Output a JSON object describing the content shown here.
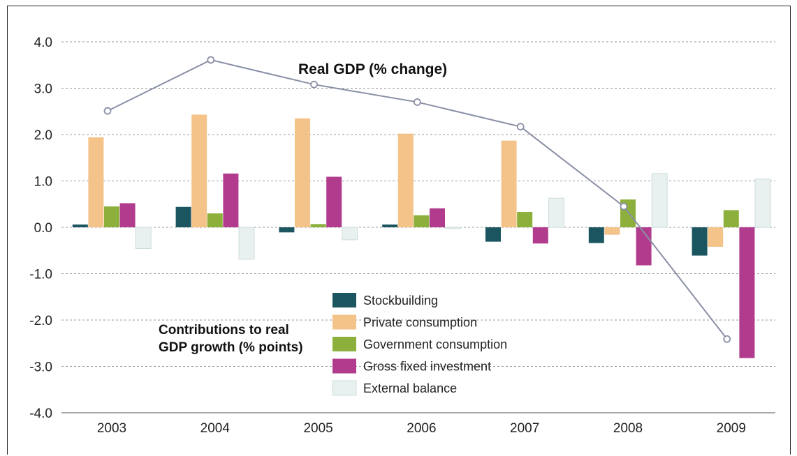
{
  "chart_data": {
    "type": "bar",
    "categories": [
      "2003",
      "2004",
      "2005",
      "2006",
      "2007",
      "2008",
      "2009"
    ],
    "series": [
      {
        "name": "Stockbuilding",
        "color": "#1b5660",
        "values": [
          0.06,
          0.44,
          -0.11,
          0.06,
          -0.31,
          -0.34,
          -0.61
        ]
      },
      {
        "name": "Private consumption",
        "color": "#f3c38a",
        "values": [
          1.94,
          2.43,
          2.35,
          2.02,
          1.87,
          -0.16,
          -0.42
        ]
      },
      {
        "name": "Government consumption",
        "color": "#8db03c",
        "values": [
          0.45,
          0.3,
          0.07,
          0.26,
          0.33,
          0.6,
          0.37
        ]
      },
      {
        "name": "Gross fixed investment",
        "color": "#b13c8e",
        "values": [
          0.52,
          1.16,
          1.09,
          0.41,
          -0.35,
          -0.82,
          -2.82
        ]
      },
      {
        "name": "External balance",
        "color": "#e8f0f0",
        "values": [
          -0.46,
          -0.69,
          -0.27,
          -0.03,
          0.63,
          1.16,
          1.04
        ]
      }
    ],
    "line": {
      "name": "Real GDP (% change)",
      "color": "#8a8fa6",
      "values": [
        2.51,
        3.61,
        3.08,
        2.7,
        2.17,
        0.45,
        -2.41
      ]
    },
    "ylim": [
      -4,
      4
    ],
    "yticks": [
      "4.0",
      "3.0",
      "2.0",
      "1.0",
      "0.0",
      "-1.0",
      "-2.0",
      "-3.0",
      "-4.0"
    ],
    "grid": true,
    "legend_position": "bottom-center",
    "annotations": {
      "line_label": "Real GDP (% change)",
      "bars_label_1": "Contributions to real",
      "bars_label_2": "GDP growth (% points)"
    }
  }
}
